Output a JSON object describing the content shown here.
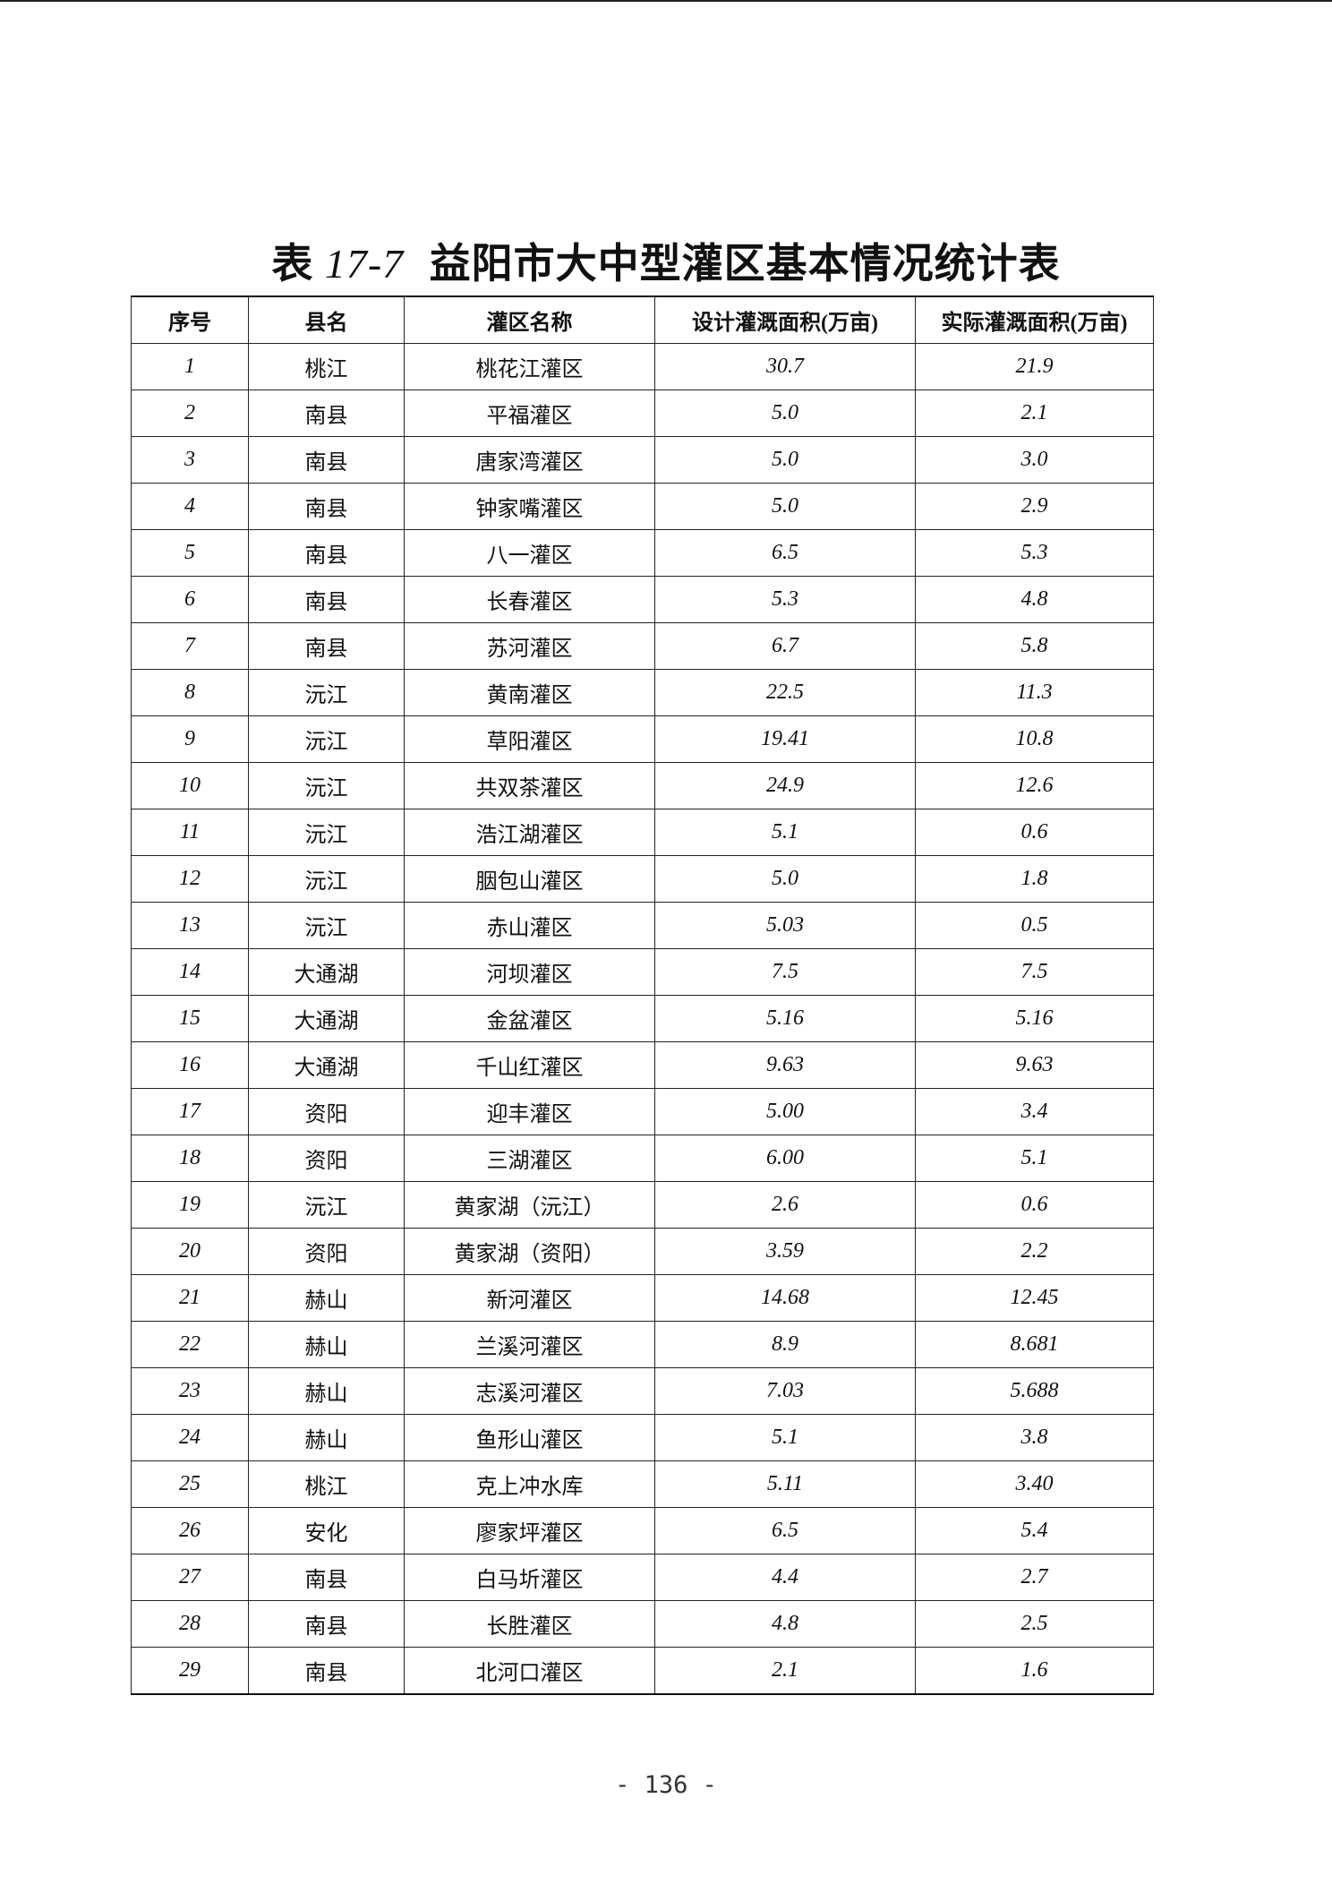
{
  "title": {
    "prefix": "表",
    "number": "17-7",
    "text": "益阳市大中型灌区基本情况统计表"
  },
  "table": {
    "headers": [
      "序号",
      "县名",
      "灌区名称",
      "设计灌溉面积(万亩)",
      "实际灌溉面积(万亩)"
    ],
    "rows": [
      [
        "1",
        "桃江",
        "桃花江灌区",
        "30.7",
        "21.9"
      ],
      [
        "2",
        "南县",
        "平福灌区",
        "5.0",
        "2.1"
      ],
      [
        "3",
        "南县",
        "唐家湾灌区",
        "5.0",
        "3.0"
      ],
      [
        "4",
        "南县",
        "钟家嘴灌区",
        "5.0",
        "2.9"
      ],
      [
        "5",
        "南县",
        "八一灌区",
        "6.5",
        "5.3"
      ],
      [
        "6",
        "南县",
        "长春灌区",
        "5.3",
        "4.8"
      ],
      [
        "7",
        "南县",
        "苏河灌区",
        "6.7",
        "5.8"
      ],
      [
        "8",
        "沅江",
        "黄南灌区",
        "22.5",
        "11.3"
      ],
      [
        "9",
        "沅江",
        "草阳灌区",
        "19.41",
        "10.8"
      ],
      [
        "10",
        "沅江",
        "共双茶灌区",
        "24.9",
        "12.6"
      ],
      [
        "11",
        "沅江",
        "浩江湖灌区",
        "5.1",
        "0.6"
      ],
      [
        "12",
        "沅江",
        "胭包山灌区",
        "5.0",
        "1.8"
      ],
      [
        "13",
        "沅江",
        "赤山灌区",
        "5.03",
        "0.5"
      ],
      [
        "14",
        "大通湖",
        "河坝灌区",
        "7.5",
        "7.5"
      ],
      [
        "15",
        "大通湖",
        "金盆灌区",
        "5.16",
        "5.16"
      ],
      [
        "16",
        "大通湖",
        "千山红灌区",
        "9.63",
        "9.63"
      ],
      [
        "17",
        "资阳",
        "迎丰灌区",
        "5.00",
        "3.4"
      ],
      [
        "18",
        "资阳",
        "三湖灌区",
        "6.00",
        "5.1"
      ],
      [
        "19",
        "沅江",
        "黄家湖（沅江）",
        "2.6",
        "0.6"
      ],
      [
        "20",
        "资阳",
        "黄家湖（资阳）",
        "3.59",
        "2.2"
      ],
      [
        "21",
        "赫山",
        "新河灌区",
        "14.68",
        "12.45"
      ],
      [
        "22",
        "赫山",
        "兰溪河灌区",
        "8.9",
        "8.681"
      ],
      [
        "23",
        "赫山",
        "志溪河灌区",
        "7.03",
        "5.688"
      ],
      [
        "24",
        "赫山",
        "鱼形山灌区",
        "5.1",
        "3.8"
      ],
      [
        "25",
        "桃江",
        "克上冲水库",
        "5.11",
        "3.40"
      ],
      [
        "26",
        "安化",
        "廖家坪灌区",
        "6.5",
        "5.4"
      ],
      [
        "27",
        "南县",
        "白马圻灌区",
        "4.4",
        "2.7"
      ],
      [
        "28",
        "南县",
        "长胜灌区",
        "4.8",
        "2.5"
      ],
      [
        "29",
        "南县",
        "北河口灌区",
        "2.1",
        "1.6"
      ]
    ]
  },
  "page_number": "- 136 -"
}
